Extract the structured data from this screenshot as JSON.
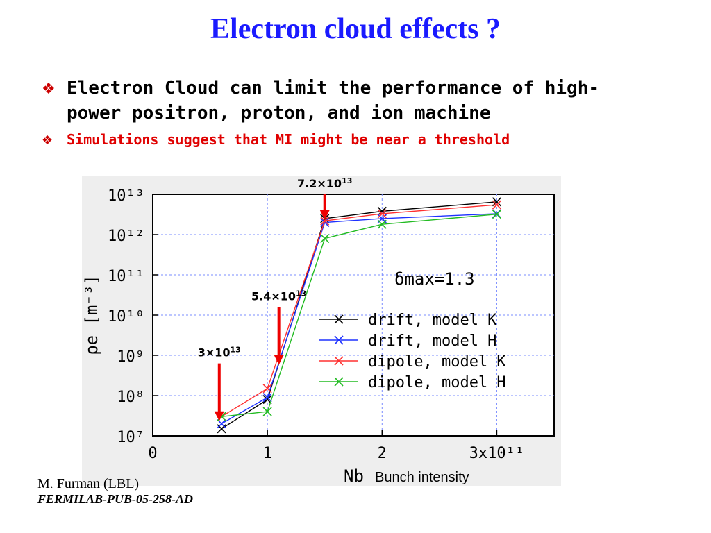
{
  "title": "Electron cloud effects ?",
  "bullets": [
    {
      "marker": "❖",
      "text_line1": "Electron Cloud can limit the performance of high-",
      "text_line2": "power positron, proton, and ion machine"
    },
    {
      "marker": "❖",
      "text": "Simulations suggest that MI might be near a threshold"
    }
  ],
  "credit": {
    "author": "M. Furman (LBL)",
    "reference": "FERMILAB-PUB-05-258-AD"
  },
  "chart_data": {
    "type": "line",
    "xlabel": "Nb",
    "xlabel_extra": "Bunch intensity",
    "ylabel": "ρe [m⁻³]",
    "xlim": [
      0,
      3.5
    ],
    "ylim_log10": [
      7,
      13
    ],
    "yscale": "log",
    "grid": true,
    "x_tick_labels": [
      "0",
      "1",
      "2",
      "3x10¹¹"
    ],
    "y_tick_labels": [
      "10⁷",
      "10⁸",
      "10⁹",
      "10¹⁰",
      "10¹¹",
      "10¹²",
      "10¹³"
    ],
    "annotation": "δmax=1.3",
    "legend_position": "right-middle",
    "series": [
      {
        "name": "drift, model K",
        "color": "#000000",
        "x": [
          0.6,
          1.0,
          1.5,
          2.0,
          3.0
        ],
        "y": [
          15000000.0,
          80000000.0,
          2500000000000.0,
          3800000000000.0,
          6500000000000.0
        ]
      },
      {
        "name": "drift, model H",
        "color": "#1e32ff",
        "x": [
          0.6,
          1.0,
          1.5,
          2.0,
          3.0
        ],
        "y": [
          20000000.0,
          90000000.0,
          2000000000000.0,
          2500000000000.0,
          3300000000000.0
        ]
      },
      {
        "name": "dipole, model K",
        "color": "#ff3030",
        "x": [
          0.6,
          1.0,
          1.5,
          2.0,
          3.0
        ],
        "y": [
          30000000.0,
          150000000.0,
          2200000000000.0,
          3300000000000.0,
          5500000000000.0
        ]
      },
      {
        "name": "dipole, model H",
        "color": "#22bb22",
        "x": [
          0.6,
          1.0,
          1.5,
          2.0,
          3.0
        ],
        "y": [
          30000000.0,
          40000000.0,
          800000000000.0,
          1800000000000.0,
          3200000000000.0
        ]
      }
    ],
    "arrows": [
      {
        "label": "3×10",
        "exp": "13",
        "x": 0.58,
        "ytop_log": 8.8,
        "ybottom_log": 7.4
      },
      {
        "label": "5.4×10",
        "exp": "13",
        "x": 1.1,
        "ytop_log": 10.2,
        "ybottom_log": 8.8
      },
      {
        "label": "7.2×10",
        "exp": "13",
        "x": 1.5,
        "ytop_log": 13.0,
        "ybottom_log": 12.4
      }
    ]
  }
}
